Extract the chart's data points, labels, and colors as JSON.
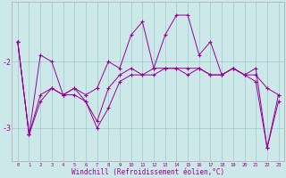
{
  "x": [
    0,
    1,
    2,
    3,
    4,
    5,
    6,
    7,
    8,
    9,
    10,
    11,
    12,
    13,
    14,
    15,
    16,
    17,
    18,
    19,
    20,
    21,
    22,
    23
  ],
  "line_low": [
    -1.7,
    -3.1,
    -2.6,
    -2.4,
    -2.5,
    -2.5,
    -2.6,
    -3.0,
    -2.7,
    -2.3,
    -2.2,
    -2.2,
    -2.2,
    -2.1,
    -2.1,
    -2.2,
    -2.1,
    -2.2,
    -2.2,
    -2.1,
    -2.2,
    -2.3,
    -3.3,
    -2.6
  ],
  "line_mid": [
    -1.7,
    -3.1,
    -2.5,
    -2.4,
    -2.5,
    -2.4,
    -2.6,
    -2.9,
    -2.4,
    -2.2,
    -2.1,
    -2.2,
    -2.1,
    -2.1,
    -2.1,
    -2.1,
    -2.1,
    -2.2,
    -2.2,
    -2.1,
    -2.2,
    -2.2,
    -2.4,
    -2.5
  ],
  "line_high": [
    -1.7,
    -3.1,
    -1.9,
    -2.0,
    -2.5,
    -2.4,
    -2.5,
    -2.4,
    -2.0,
    -2.1,
    -1.6,
    -1.4,
    -2.1,
    -1.6,
    -1.3,
    -1.3,
    -1.9,
    -1.7,
    -2.2,
    -2.1,
    -2.2,
    -2.1,
    -3.3,
    -2.5
  ],
  "color": "#990099",
  "bg_color": "#cce8e8",
  "grid_color": "#99cccc",
  "xlabel": "Windchill (Refroidissement éolien,°C)",
  "ylim": [
    -3.5,
    -1.1
  ],
  "yticks": [
    -3.0,
    -2.0
  ],
  "ytick_labels": [
    "-3",
    "-2"
  ],
  "xlim": [
    -0.5,
    23.5
  ]
}
